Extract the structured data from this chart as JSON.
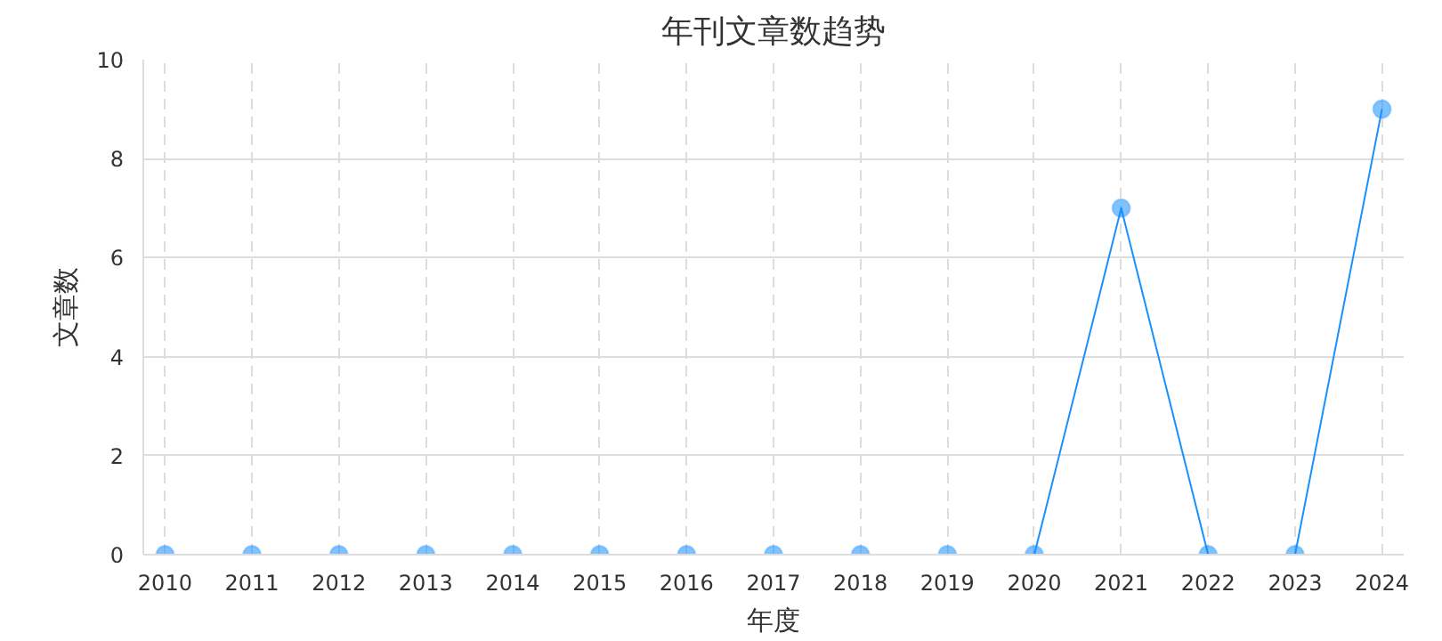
{
  "chart_data": {
    "type": "line",
    "title": "年刊文章数趋势",
    "xlabel": "年度",
    "ylabel": "文章数",
    "categories": [
      "2010",
      "2011",
      "2012",
      "2013",
      "2014",
      "2015",
      "2016",
      "2017",
      "2018",
      "2019",
      "2020",
      "2021",
      "2022",
      "2023",
      "2024"
    ],
    "series": [
      {
        "color": "#1890ff",
        "values": [
          0,
          0,
          0,
          0,
          0,
          0,
          0,
          0,
          0,
          0,
          0,
          7,
          0,
          0,
          9
        ]
      }
    ],
    "ylim": [
      0,
      10
    ],
    "yticks": [
      0,
      2,
      4,
      6,
      8,
      10
    ],
    "grid": true,
    "marker": "circle",
    "line_style": "solid"
  }
}
